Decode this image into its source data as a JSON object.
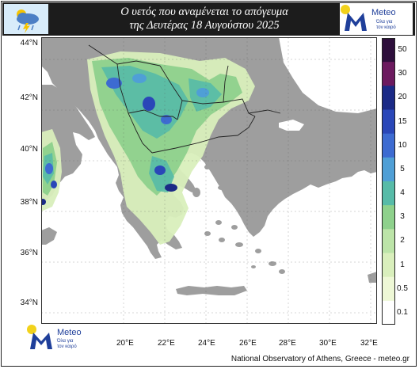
{
  "header": {
    "title_line1": "Ο υετός που αναμένεται το απόγευμα",
    "title_line2": "της Δευτέρας 18 Αυγούστου 2025"
  },
  "logo": {
    "name": "Meteo",
    "tagline_line1": "Όλα για",
    "tagline_line2": "τον καιρό",
    "letter_color": "#1f3f9a",
    "sun_color": "#f2d21b"
  },
  "map": {
    "lat_labels": [
      "44°N",
      "42°N",
      "40°N",
      "38°N",
      "36°N",
      "34°N"
    ],
    "lon_labels": [
      "20°E",
      "22°E",
      "24°E",
      "26°E",
      "28°E",
      "30°E",
      "32°E"
    ],
    "lat_range": [
      33,
      44
    ],
    "lon_range": [
      16,
      33
    ],
    "land_color": "#9e9e9e",
    "sea_color": "#ffffff"
  },
  "legend": {
    "labels": [
      "50",
      "30",
      "20",
      "15",
      "10",
      "5",
      "4",
      "3",
      "2",
      "1",
      "0.5",
      "0.1"
    ],
    "colors": [
      "#2e0f3c",
      "#6c1a5f",
      "#1b2a86",
      "#2a47b8",
      "#3d6bd1",
      "#4f9fd6",
      "#57bba8",
      "#8ed18c",
      "#bce4a8",
      "#d9efbc",
      "#eef8d6",
      "#ffffff"
    ]
  },
  "footer": {
    "credit": "National Observatory of Athens, Greece - meteo.gr"
  }
}
